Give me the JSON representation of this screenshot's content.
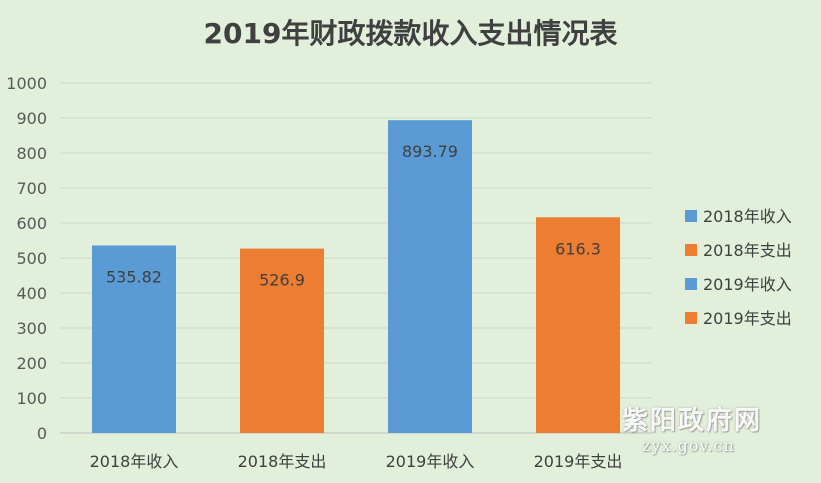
{
  "chart_data": {
    "type": "bar",
    "title": "2019年财政拨款收入支出情况表",
    "categories": [
      "2018年收入",
      "2018年支出",
      "2019年收入",
      "2019年支出"
    ],
    "values": [
      535.82,
      526.9,
      893.79,
      616.3
    ],
    "data_labels": [
      "535.82",
      "526.9",
      "893.79",
      "616.3"
    ],
    "bar_colors": [
      "#5b9bd5",
      "#ed7d31",
      "#5b9bd5",
      "#ed7d31"
    ],
    "ylim": [
      0,
      1000
    ],
    "yticks": [
      0,
      100,
      200,
      300,
      400,
      500,
      600,
      700,
      800,
      900,
      1000
    ],
    "grid": true,
    "legend": {
      "position": "right",
      "entries": [
        {
          "label": "2018年收入",
          "color": "#5b9bd5"
        },
        {
          "label": "2018年支出",
          "color": "#ed7d31"
        },
        {
          "label": "2019年收入",
          "color": "#5b9bd5"
        },
        {
          "label": "2019年支出",
          "color": "#ed7d31"
        }
      ]
    }
  },
  "watermark": {
    "name": "紫阳政府网",
    "url": "zyx.gov.cn"
  }
}
